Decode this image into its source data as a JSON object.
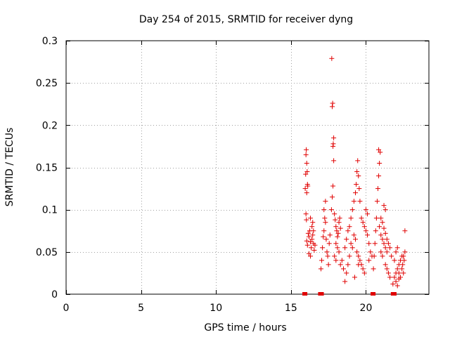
{
  "chart_data": {
    "type": "scatter",
    "title": "Day 254 of 2015, SRMTID for receiver dyng",
    "xlabel": "GPS time / hours",
    "ylabel": "SRMTID / TECUs",
    "xlim": [
      0,
      24.2
    ],
    "ylim": [
      0,
      0.3
    ],
    "xticks": [
      0,
      5,
      10,
      15,
      20
    ],
    "xtick_labels": [
      "0",
      "5",
      "10",
      "15",
      "20"
    ],
    "yticks": [
      0,
      0.05,
      0.1,
      0.15,
      0.2,
      0.25,
      0.3
    ],
    "ytick_labels": [
      "0",
      "0.05",
      "0.1",
      "0.15",
      "0.2",
      "0.25",
      "0.3"
    ],
    "grid": true,
    "marker": "+",
    "color": "#e00000",
    "series": [
      {
        "name": "SRMTID",
        "points": [
          [
            15.95,
            0.125
          ],
          [
            15.98,
            0.142
          ],
          [
            16.0,
            0.165
          ],
          [
            16.02,
            0.171
          ],
          [
            16.05,
            0.155
          ],
          [
            16.08,
            0.145
          ],
          [
            16.0,
            0.095
          ],
          [
            16.03,
            0.088
          ],
          [
            16.05,
            0.12
          ],
          [
            16.1,
            0.13
          ],
          [
            16.12,
            0.128
          ],
          [
            16.05,
            0.063
          ],
          [
            16.1,
            0.058
          ],
          [
            16.15,
            0.072
          ],
          [
            16.2,
            0.068
          ],
          [
            16.25,
            0.075
          ],
          [
            16.3,
            0.062
          ],
          [
            16.35,
            0.055
          ],
          [
            16.4,
            0.065
          ],
          [
            16.45,
            0.07
          ],
          [
            16.5,
            0.06
          ],
          [
            16.55,
            0.052
          ],
          [
            16.2,
            0.048
          ],
          [
            16.3,
            0.045
          ],
          [
            16.4,
            0.08
          ],
          [
            16.5,
            0.075
          ],
          [
            16.6,
            0.058
          ],
          [
            16.3,
            0.09
          ],
          [
            16.45,
            0.085
          ],
          [
            17.0,
            0.03
          ],
          [
            17.05,
            0.04
          ],
          [
            17.1,
            0.055
          ],
          [
            17.15,
            0.068
          ],
          [
            17.2,
            0.075
          ],
          [
            17.25,
            0.09
          ],
          [
            17.2,
            0.1
          ],
          [
            17.3,
            0.085
          ],
          [
            17.35,
            0.065
          ],
          [
            17.4,
            0.05
          ],
          [
            17.45,
            0.045
          ],
          [
            17.5,
            0.035
          ],
          [
            17.55,
            0.06
          ],
          [
            17.6,
            0.07
          ],
          [
            17.3,
            0.11
          ],
          [
            17.7,
            0.1
          ],
          [
            17.75,
            0.115
          ],
          [
            17.8,
            0.128
          ],
          [
            17.85,
            0.158
          ],
          [
            17.8,
            0.175
          ],
          [
            17.82,
            0.178
          ],
          [
            17.85,
            0.185
          ],
          [
            17.75,
            0.222
          ],
          [
            17.78,
            0.226
          ],
          [
            17.72,
            0.279
          ],
          [
            17.9,
            0.095
          ],
          [
            17.95,
            0.088
          ],
          [
            18.0,
            0.08
          ],
          [
            18.05,
            0.075
          ],
          [
            18.1,
            0.068
          ],
          [
            18.15,
            0.072
          ],
          [
            18.2,
            0.085
          ],
          [
            18.25,
            0.09
          ],
          [
            18.3,
            0.078
          ],
          [
            18.0,
            0.06
          ],
          [
            18.1,
            0.055
          ],
          [
            18.2,
            0.05
          ],
          [
            17.9,
            0.045
          ],
          [
            18.0,
            0.04
          ],
          [
            18.3,
            0.035
          ],
          [
            18.4,
            0.04
          ],
          [
            18.5,
            0.03
          ],
          [
            18.6,
            0.015
          ],
          [
            18.7,
            0.025
          ],
          [
            18.8,
            0.035
          ],
          [
            18.9,
            0.045
          ],
          [
            18.6,
            0.055
          ],
          [
            18.7,
            0.065
          ],
          [
            18.8,
            0.075
          ],
          [
            18.9,
            0.08
          ],
          [
            19.0,
            0.09
          ],
          [
            19.1,
            0.1
          ],
          [
            19.2,
            0.11
          ],
          [
            19.3,
            0.12
          ],
          [
            19.35,
            0.13
          ],
          [
            19.4,
            0.145
          ],
          [
            19.45,
            0.158
          ],
          [
            19.5,
            0.14
          ],
          [
            19.55,
            0.125
          ],
          [
            19.6,
            0.11
          ],
          [
            19.0,
            0.06
          ],
          [
            19.1,
            0.055
          ],
          [
            19.2,
            0.07
          ],
          [
            19.3,
            0.065
          ],
          [
            19.4,
            0.05
          ],
          [
            19.5,
            0.045
          ],
          [
            19.6,
            0.04
          ],
          [
            19.7,
            0.035
          ],
          [
            19.8,
            0.03
          ],
          [
            19.9,
            0.025
          ],
          [
            19.7,
            0.09
          ],
          [
            19.8,
            0.085
          ],
          [
            19.9,
            0.08
          ],
          [
            20.0,
            0.075
          ],
          [
            20.1,
            0.07
          ],
          [
            20.2,
            0.06
          ],
          [
            20.0,
            0.1
          ],
          [
            20.1,
            0.095
          ],
          [
            20.3,
            0.05
          ],
          [
            20.4,
            0.045
          ],
          [
            20.2,
            0.04
          ],
          [
            19.25,
            0.02
          ],
          [
            19.5,
            0.035
          ],
          [
            20.5,
            0.03
          ],
          [
            20.55,
            0.045
          ],
          [
            20.6,
            0.06
          ],
          [
            20.65,
            0.075
          ],
          [
            20.7,
            0.09
          ],
          [
            20.75,
            0.11
          ],
          [
            20.8,
            0.125
          ],
          [
            20.85,
            0.14
          ],
          [
            20.9,
            0.155
          ],
          [
            20.95,
            0.168
          ],
          [
            20.85,
            0.171
          ],
          [
            20.9,
            0.08
          ],
          [
            21.0,
            0.07
          ],
          [
            21.1,
            0.065
          ],
          [
            21.2,
            0.06
          ],
          [
            21.3,
            0.055
          ],
          [
            21.4,
            0.05
          ],
          [
            21.0,
            0.09
          ],
          [
            21.1,
            0.085
          ],
          [
            21.2,
            0.078
          ],
          [
            21.3,
            0.072
          ],
          [
            21.0,
            0.05
          ],
          [
            21.1,
            0.045
          ],
          [
            21.3,
            0.035
          ],
          [
            21.4,
            0.03
          ],
          [
            21.5,
            0.025
          ],
          [
            21.6,
            0.02
          ],
          [
            21.4,
            0.065
          ],
          [
            21.5,
            0.06
          ],
          [
            21.6,
            0.055
          ],
          [
            21.7,
            0.045
          ],
          [
            21.3,
            0.1
          ],
          [
            21.2,
            0.105
          ],
          [
            21.8,
            0.012
          ],
          [
            21.9,
            0.02
          ],
          [
            22.0,
            0.025
          ],
          [
            22.1,
            0.03
          ],
          [
            22.2,
            0.035
          ],
          [
            22.3,
            0.04
          ],
          [
            22.4,
            0.045
          ],
          [
            22.0,
            0.05
          ],
          [
            22.1,
            0.055
          ],
          [
            21.9,
            0.04
          ],
          [
            22.2,
            0.025
          ],
          [
            22.3,
            0.02
          ],
          [
            22.4,
            0.03
          ],
          [
            22.45,
            0.035
          ],
          [
            22.5,
            0.025
          ],
          [
            22.55,
            0.04
          ],
          [
            22.6,
            0.05
          ],
          [
            22.5,
            0.045
          ],
          [
            22.6,
            0.075
          ],
          [
            22.0,
            0.015
          ],
          [
            22.2,
            0.018
          ],
          [
            22.1,
            0.01
          ]
        ]
      }
    ],
    "zero_markers_x": [
      15.9,
      15.95,
      16.95,
      17.05,
      20.45,
      20.5,
      21.8,
      21.9
    ]
  }
}
